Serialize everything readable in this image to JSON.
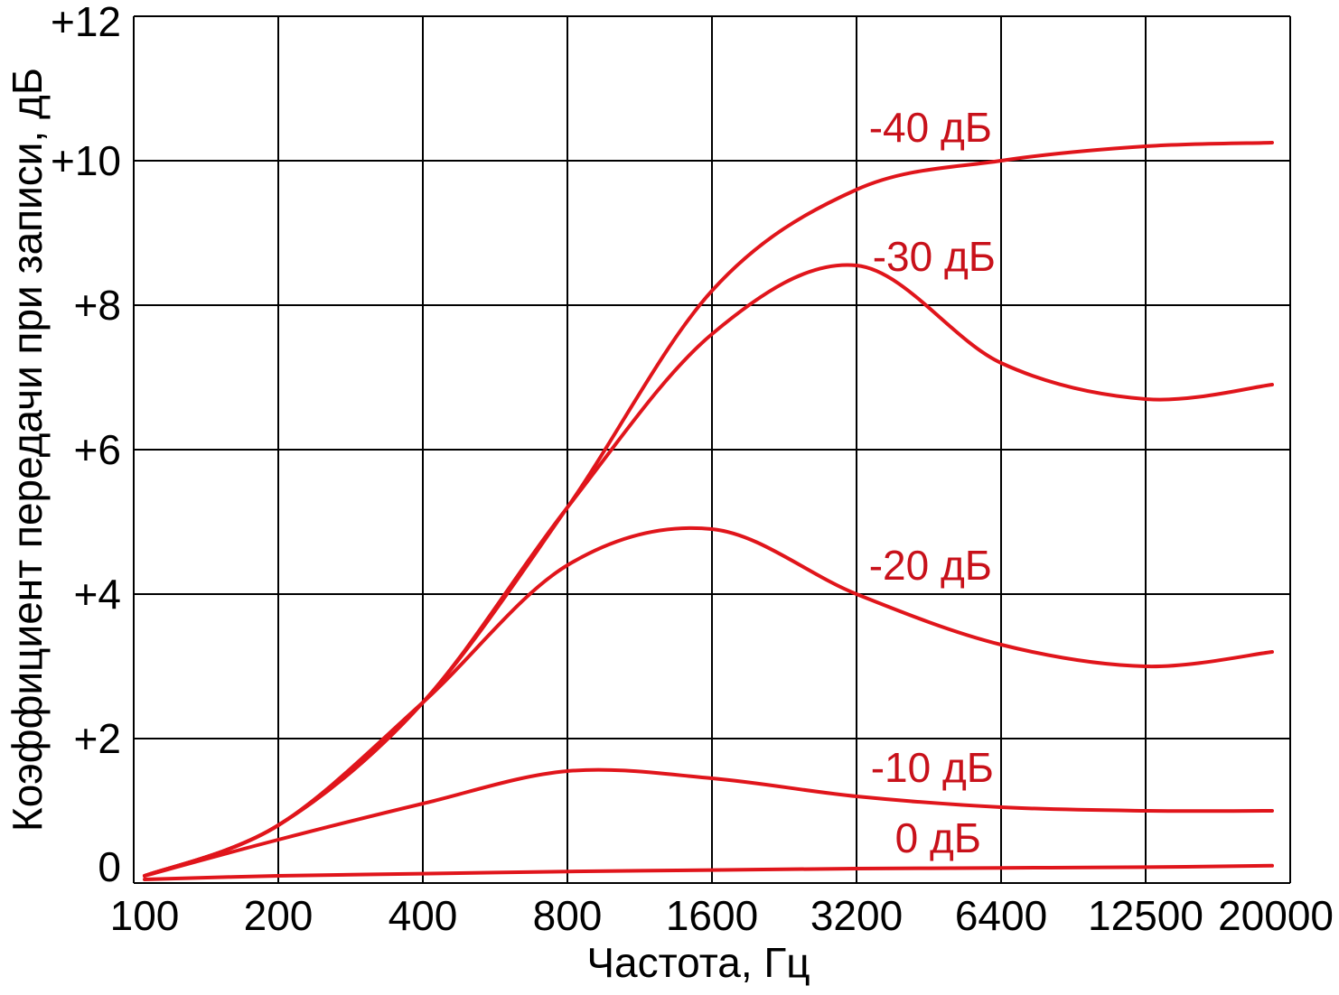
{
  "chart_data": {
    "type": "line",
    "xlabel": "Частота, Гц",
    "ylabel": "Коэффициент передачи при записи, дБ",
    "x_ticks": [
      "100",
      "200",
      "400",
      "800",
      "1600",
      "3200",
      "6400",
      "12500",
      "20000"
    ],
    "y_ticks": [
      "0",
      "+2",
      "+4",
      "+6",
      "+8",
      "+10",
      "+12"
    ],
    "ylim": [
      0,
      12
    ],
    "grid": true,
    "line_color": "#e0151b",
    "label_color": "#c8111a",
    "series": [
      {
        "name": "-40 дБ",
        "x": [
          "100",
          "200",
          "400",
          "800",
          "1600",
          "3200",
          "6400",
          "12500",
          "20000"
        ],
        "values": [
          0.1,
          0.8,
          2.5,
          5.2,
          8.2,
          9.6,
          10.0,
          10.2,
          10.25
        ]
      },
      {
        "name": "-30 дБ",
        "x": [
          "100",
          "200",
          "400",
          "800",
          "1600",
          "3200",
          "6400",
          "12500",
          "20000"
        ],
        "values": [
          0.1,
          0.8,
          2.5,
          5.2,
          7.6,
          8.55,
          7.2,
          6.7,
          6.9
        ]
      },
      {
        "name": "-20 дБ",
        "x": [
          "100",
          "200",
          "400",
          "800",
          "1600",
          "3200",
          "6400",
          "12500",
          "20000"
        ],
        "values": [
          0.1,
          0.8,
          2.5,
          4.4,
          4.9,
          4.0,
          3.3,
          3.0,
          3.2
        ]
      },
      {
        "name": "-10 дБ",
        "x": [
          "100",
          "200",
          "400",
          "800",
          "1600",
          "3200",
          "6400",
          "12500",
          "20000"
        ],
        "values": [
          0.1,
          0.6,
          1.1,
          1.55,
          1.45,
          1.2,
          1.05,
          1.0,
          1.0
        ]
      },
      {
        "name": "0 дБ",
        "x": [
          "100",
          "200",
          "400",
          "800",
          "1600",
          "3200",
          "6400",
          "12500",
          "20000"
        ],
        "values": [
          0.05,
          0.1,
          0.13,
          0.16,
          0.18,
          0.2,
          0.21,
          0.22,
          0.24
        ]
      }
    ]
  }
}
